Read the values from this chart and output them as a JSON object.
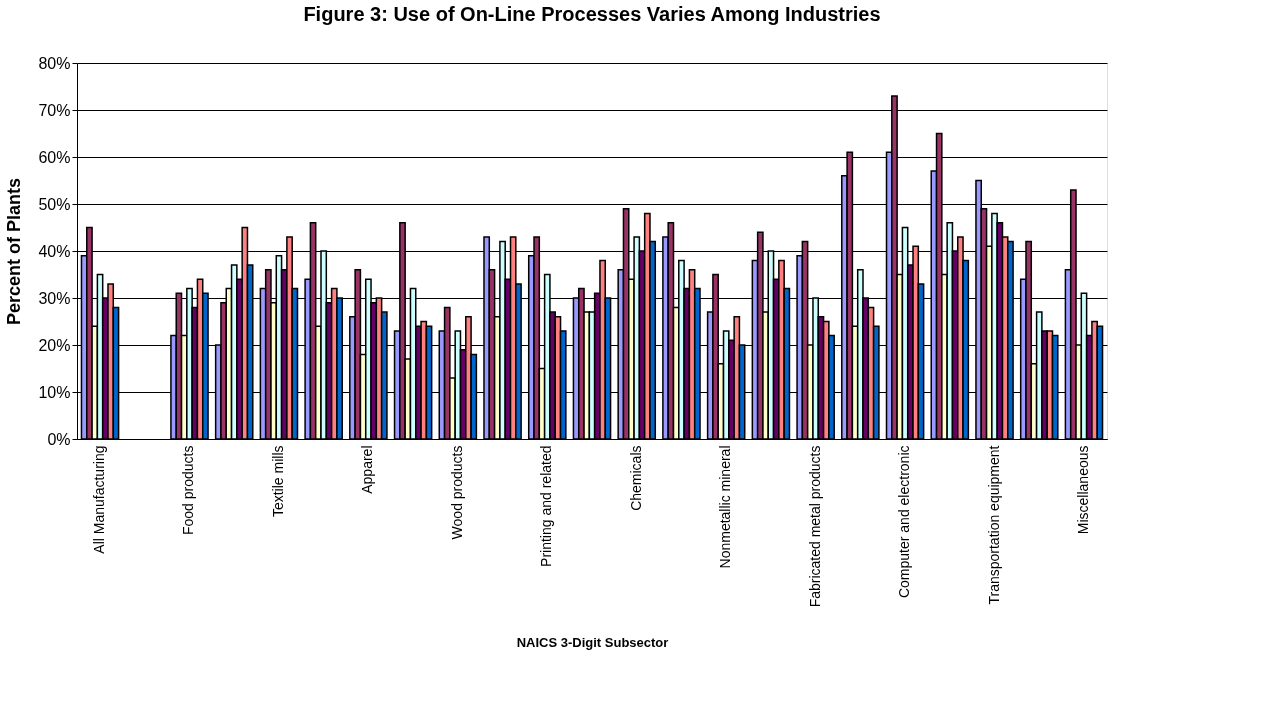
{
  "chart_data": {
    "type": "bar",
    "title": "Figure 3:  Use of On-Line Processes Varies Among Industries",
    "xlabel": "NAICS 3-Digit Subsector",
    "ylabel": "Percent of Plants",
    "categories": [
      "All Manufacturing",
      null,
      "Food products",
      null,
      "Textile mills",
      null,
      "Apparel",
      null,
      "Wood products",
      null,
      "Printing and related",
      null,
      "Chemicals",
      null,
      "Nonmetallic mineral",
      null,
      "Fabricated metal products",
      null,
      "Computer and electronic",
      null,
      "Transportation equipment",
      null,
      "Miscellaneous"
    ],
    "series": [
      {
        "color": "#9999ff",
        "values": [
          39,
          null,
          22,
          20,
          32,
          34,
          26,
          23,
          23,
          43,
          39,
          30,
          36,
          43,
          27,
          38,
          39,
          56,
          61,
          57,
          55,
          34,
          36
        ]
      },
      {
        "color": "#993366",
        "values": [
          45,
          null,
          31,
          29,
          36,
          46,
          36,
          46,
          28,
          36,
          43,
          32,
          49,
          46,
          35,
          44,
          42,
          61,
          73,
          65,
          49,
          42,
          53
        ]
      },
      {
        "color": "#ffffcc",
        "values": [
          24,
          null,
          22,
          32,
          29,
          24,
          18,
          17,
          13,
          26,
          15,
          27,
          34,
          28,
          16,
          27,
          20,
          24,
          35,
          35,
          41,
          16,
          20
        ]
      },
      {
        "color": "#ccffff",
        "values": [
          35,
          null,
          32,
          37,
          39,
          40,
          34,
          32,
          23,
          42,
          35,
          27,
          43,
          38,
          23,
          40,
          30,
          36,
          45,
          46,
          48,
          27,
          31
        ]
      },
      {
        "color": "#660066",
        "values": [
          30,
          null,
          28,
          34,
          36,
          29,
          29,
          24,
          19,
          34,
          27,
          31,
          40,
          32,
          21,
          34,
          26,
          30,
          37,
          40,
          46,
          23,
          22
        ]
      },
      {
        "color": "#ff8080",
        "values": [
          33,
          null,
          34,
          45,
          43,
          32,
          30,
          25,
          26,
          43,
          26,
          38,
          48,
          36,
          26,
          38,
          25,
          28,
          41,
          43,
          43,
          23,
          25
        ]
      },
      {
        "color": "#0066cc",
        "values": [
          28,
          null,
          31,
          37,
          32,
          30,
          27,
          24,
          18,
          33,
          23,
          30,
          42,
          32,
          20,
          32,
          22,
          24,
          33,
          38,
          42,
          22,
          24
        ]
      }
    ],
    "ylim": [
      0,
      80
    ],
    "yticks": [
      {
        "value": 0,
        "label": "0%"
      },
      {
        "value": 10,
        "label": "10%"
      },
      {
        "value": 20,
        "label": "20%"
      },
      {
        "value": 30,
        "label": "30%"
      },
      {
        "value": 40,
        "label": "40%"
      },
      {
        "value": 50,
        "label": "50%"
      },
      {
        "value": 60,
        "label": "60%"
      },
      {
        "value": 70,
        "label": "70%"
      },
      {
        "value": 80,
        "label": "80%"
      }
    ],
    "grid": "y",
    "legend": false
  }
}
